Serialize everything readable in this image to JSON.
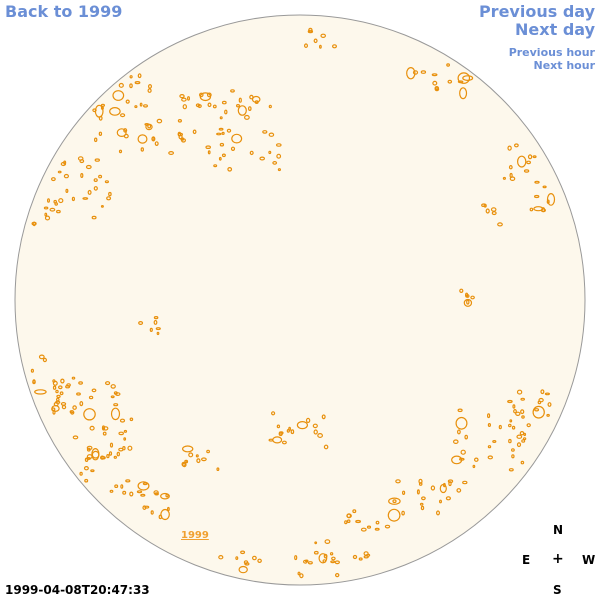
{
  "nav": {
    "back_label": "Back to 1999",
    "prev_day_label": "Previous day",
    "next_day_label": "Next day",
    "prev_hour_label": "Previous hour",
    "next_hour_label": "Next hour"
  },
  "disk": {
    "year_label": "1999",
    "fill_color": "#fdf8ec",
    "border_color": "#999999",
    "feature_color": "#e8900c"
  },
  "compass": {
    "north": "N",
    "east": "E",
    "center": "+",
    "west": "W",
    "south": "S"
  },
  "timestamp": "1999-04-08T20:47:33",
  "colors": {
    "link": "#6b8fd6",
    "year_link": "#f0a030"
  }
}
